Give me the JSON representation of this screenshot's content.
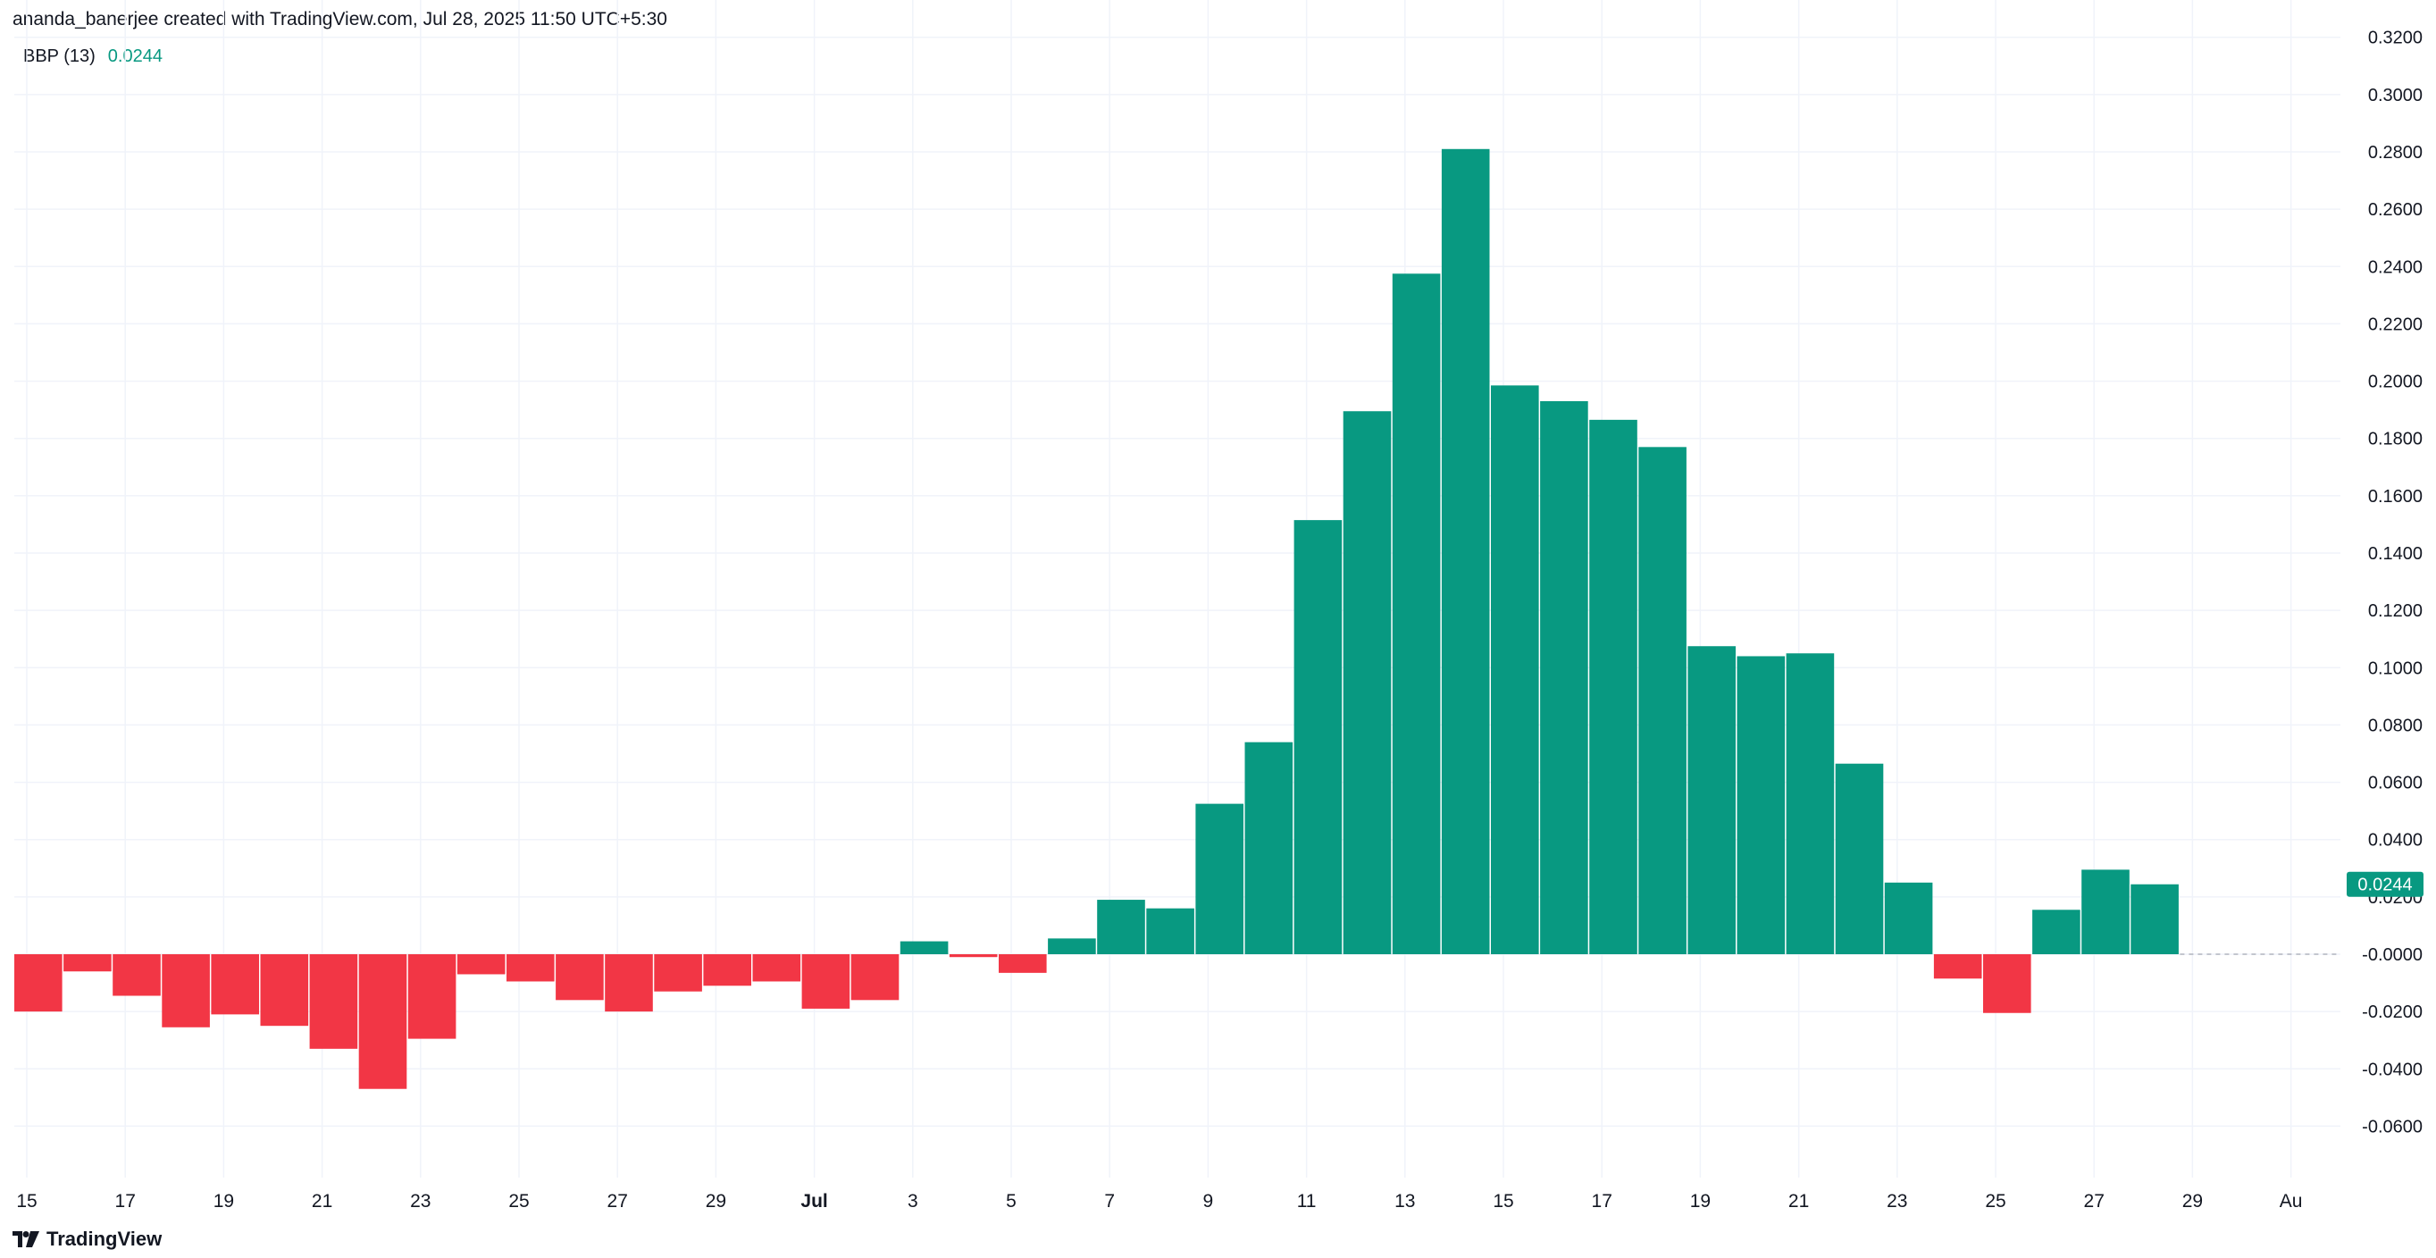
{
  "header": {
    "attribution": "ananda_banerjee created with TradingView.com, Jul 28, 2025 11:50 UTC+5:30",
    "indicator": "BBP (13)",
    "indicator_value": "0.0244"
  },
  "footer": {
    "brand": "TradingView",
    "brand_icon": "tradingview-logo-icon"
  },
  "colors": {
    "positive": "#089981",
    "negative": "#F23645",
    "grid": "#F0F3FA",
    "zero_line": "#B2B5BE"
  },
  "chart_data": {
    "type": "bar",
    "title": "",
    "xlabel": "",
    "ylabel": "",
    "ylim": [
      -0.07,
      0.325
    ],
    "grid": true,
    "y_ticks": [
      "0.3200",
      "0.3000",
      "0.2800",
      "0.2600",
      "0.2400",
      "0.2200",
      "0.2000",
      "0.1800",
      "0.1600",
      "0.1400",
      "0.1200",
      "0.1000",
      "0.0800",
      "0.0600",
      "0.0400",
      "0.0200",
      "-0.0000",
      "-0.0200",
      "-0.0400",
      "-0.0600"
    ],
    "x_tick_labels": [
      "15",
      "17",
      "19",
      "21",
      "23",
      "25",
      "27",
      "29",
      "Jul",
      "3",
      "5",
      "7",
      "9",
      "11",
      "13",
      "15",
      "17",
      "19",
      "21",
      "23",
      "25",
      "27",
      "29",
      "Au"
    ],
    "categories": [
      "Jun 15",
      "Jun 16",
      "Jun 17",
      "Jun 18",
      "Jun 19",
      "Jun 20",
      "Jun 21",
      "Jun 22",
      "Jun 23",
      "Jun 24",
      "Jun 25",
      "Jun 26",
      "Jun 27",
      "Jun 28",
      "Jun 29",
      "Jun 30",
      "Jul 1",
      "Jul 2",
      "Jul 3",
      "Jul 4",
      "Jul 5",
      "Jul 6",
      "Jul 7",
      "Jul 8",
      "Jul 9",
      "Jul 10",
      "Jul 11",
      "Jul 12",
      "Jul 13",
      "Jul 14",
      "Jul 15",
      "Jul 16",
      "Jul 17",
      "Jul 18",
      "Jul 19",
      "Jul 20",
      "Jul 21",
      "Jul 22",
      "Jul 23",
      "Jul 24",
      "Jul 25",
      "Jul 26",
      "Jul 27",
      "Jul 28"
    ],
    "values": [
      -0.02,
      -0.006,
      -0.0145,
      -0.0255,
      -0.021,
      -0.025,
      -0.033,
      -0.047,
      -0.0295,
      -0.007,
      -0.0095,
      -0.016,
      -0.02,
      -0.013,
      -0.011,
      -0.0095,
      -0.019,
      -0.016,
      0.0045,
      -0.001,
      -0.0065,
      0.0055,
      0.019,
      0.016,
      0.0525,
      0.074,
      0.1515,
      0.1895,
      0.2375,
      0.281,
      0.1985,
      0.193,
      0.1865,
      0.177,
      0.1075,
      0.104,
      0.105,
      0.0665,
      0.025,
      -0.0085,
      -0.0205,
      0.0155,
      0.0295,
      0.0244
    ],
    "last_value_label": "0.0244"
  }
}
